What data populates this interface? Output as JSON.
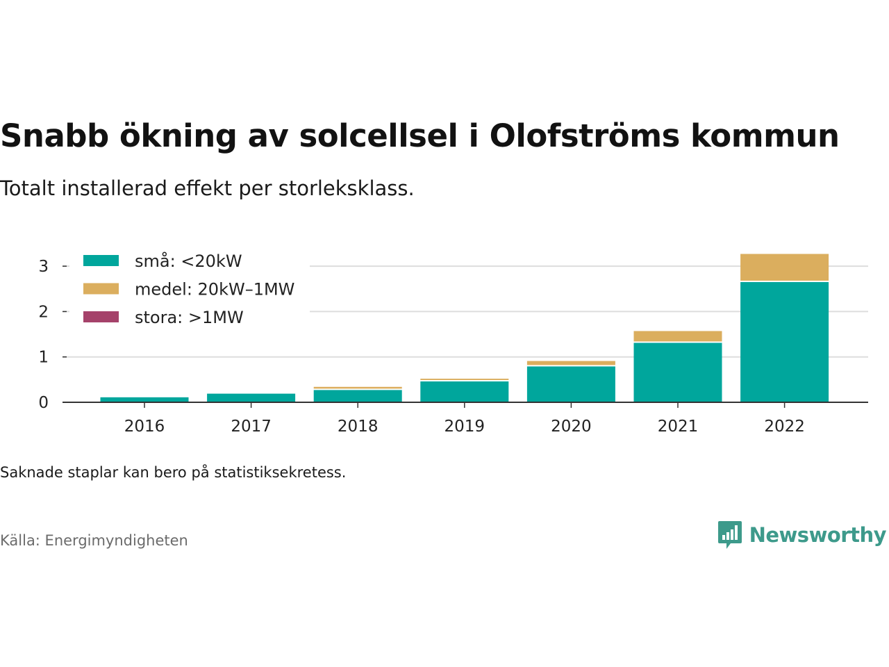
{
  "title": "Snabb ökning av solcellsel i Olofströms kommun",
  "subtitle": "Totalt installerad effekt per storleksklass.",
  "note": "Saknade staplar kan bero på statistiksekretess.",
  "source": "Källa: Energimyndigheten",
  "brand": {
    "name": "Newsworthy",
    "color": "#3d9a8b",
    "icon": "newsworthy-logo-icon"
  },
  "colors": {
    "grid": "#dddddd",
    "axis": "#333333",
    "text": "#222222"
  },
  "chart_data": {
    "type": "bar",
    "stacked": true,
    "categories": [
      "2016",
      "2017",
      "2018",
      "2019",
      "2020",
      "2021",
      "2022"
    ],
    "series": [
      {
        "name": "små: <20kW",
        "color": "#00a69c",
        "values": [
          0.11,
          0.19,
          0.27,
          0.46,
          0.79,
          1.31,
          2.65
        ]
      },
      {
        "name": "medel: 20kW–1MW",
        "color": "#dbae5e",
        "values": [
          0.0,
          0.0,
          0.07,
          0.06,
          0.12,
          0.26,
          0.62
        ]
      },
      {
        "name": "stora: >1MW",
        "color": "#a5426a",
        "values": [
          0,
          0,
          0,
          0,
          0,
          0,
          0
        ]
      }
    ],
    "y_ticks": [
      "0",
      "1",
      "2",
      "3"
    ],
    "ylim": [
      0,
      3.3
    ],
    "grid": true,
    "legend_position": "top-left"
  }
}
